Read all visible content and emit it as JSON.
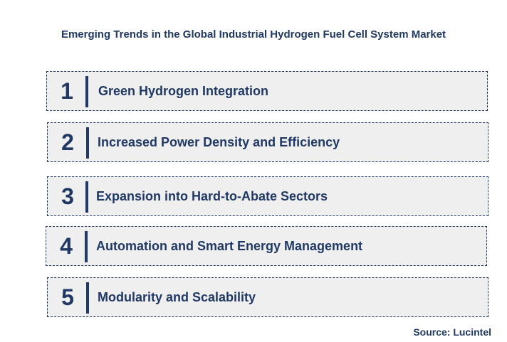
{
  "title": "Emerging Trends in the Global Industrial Hydrogen Fuel Cell System Market",
  "trends": [
    {
      "number": "1",
      "label": "Green Hydrogen Integration"
    },
    {
      "number": "2",
      "label": "Increased Power Density and Efficiency"
    },
    {
      "number": "3",
      "label": "Expansion into Hard-to-Abate Sectors"
    },
    {
      "number": "4",
      "label": "Automation and Smart Energy Management"
    },
    {
      "number": "5",
      "label": "Modularity and Scalability"
    }
  ],
  "source": "Source: Lucintel",
  "colors": {
    "text": "#1f3864",
    "box_fill": "#efefef",
    "box_border": "#1f3864"
  }
}
